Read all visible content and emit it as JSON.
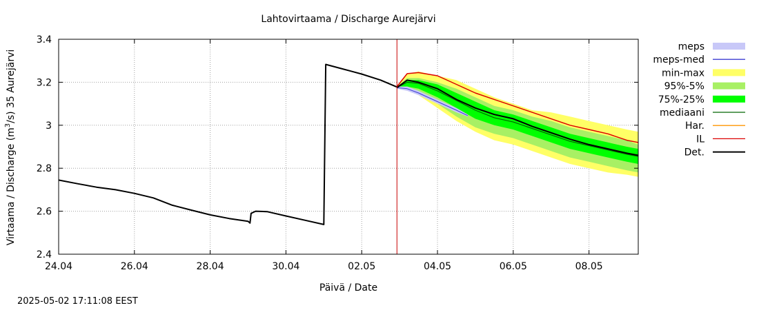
{
  "chart_data": {
    "type": "line",
    "title": "Lahtovirtaama / Discharge  Aurejärvi",
    "xlabel": "Päivä / Date",
    "ylabel_main": "Virtaama / Discharge (m",
    "ylabel_sup": "3",
    "ylabel_tail": "/s)  35 Aurejärvi",
    "ylim": [
      2.4,
      3.4
    ],
    "xlim_days": [
      0,
      15.3
    ],
    "x_ticks": [
      {
        "day": 0,
        "label": "24.04"
      },
      {
        "day": 2,
        "label": "26.04"
      },
      {
        "day": 4,
        "label": "28.04"
      },
      {
        "day": 6,
        "label": "30.04"
      },
      {
        "day": 8,
        "label": "02.05"
      },
      {
        "day": 10,
        "label": "04.05"
      },
      {
        "day": 12,
        "label": "06.05"
      },
      {
        "day": 14,
        "label": "08.05"
      }
    ],
    "y_ticks": [
      {
        "value": 2.4,
        "label": "2.4"
      },
      {
        "value": 2.6,
        "label": "2.6"
      },
      {
        "value": 2.8,
        "label": "2.8"
      },
      {
        "value": 3.0,
        "label": "3"
      },
      {
        "value": 3.2,
        "label": "3.2"
      },
      {
        "value": 3.4,
        "label": "3.4"
      }
    ],
    "grid": true,
    "forecast_start_day": 8.93,
    "colors": {
      "meps": "#c8c8f8",
      "meps_med": "#3c3cd2",
      "minmax": "#ffff66",
      "p95_5": "#a8f064",
      "p75_25": "#00ff00",
      "mediaani": "#006400",
      "har": "#ff9600",
      "il": "#dc0000",
      "det": "#000000",
      "vline": "#c80000",
      "grid": "#a0a0a0"
    },
    "legend": {
      "placement": "right",
      "items": [
        {
          "key": "meps",
          "label": "meps",
          "kind": "band"
        },
        {
          "key": "meps_med",
          "label": "meps-med",
          "kind": "line"
        },
        {
          "key": "minmax",
          "label": "min-max",
          "kind": "band"
        },
        {
          "key": "p95_5",
          "label": "95%-5%",
          "kind": "band"
        },
        {
          "key": "p75_25",
          "label": "75%-25%",
          "kind": "band"
        },
        {
          "key": "mediaani",
          "label": "mediaani",
          "kind": "line"
        },
        {
          "key": "har",
          "label": "Har.",
          "kind": "line"
        },
        {
          "key": "il",
          "label": "IL",
          "kind": "line"
        },
        {
          "key": "det",
          "label": "Det.",
          "kind": "thickline"
        }
      ]
    },
    "observed": {
      "name": "Det.",
      "points": [
        [
          0,
          2.745
        ],
        [
          0.5,
          2.728
        ],
        [
          1.0,
          2.712
        ],
        [
          1.5,
          2.7
        ],
        [
          2.0,
          2.683
        ],
        [
          2.5,
          2.662
        ],
        [
          3.0,
          2.628
        ],
        [
          3.5,
          2.605
        ],
        [
          4.0,
          2.583
        ],
        [
          4.5,
          2.566
        ],
        [
          5.0,
          2.553
        ],
        [
          5.05,
          2.545
        ],
        [
          5.08,
          2.59
        ],
        [
          5.2,
          2.6
        ],
        [
          5.5,
          2.598
        ],
        [
          6.0,
          2.578
        ],
        [
          6.5,
          2.558
        ],
        [
          7.0,
          2.538
        ],
        [
          7.05,
          3.283
        ],
        [
          7.5,
          3.262
        ],
        [
          8.0,
          3.238
        ],
        [
          8.5,
          3.21
        ],
        [
          8.93,
          3.178
        ]
      ]
    },
    "forecast_days": [
      8.93,
      9.2,
      9.5,
      10.0,
      10.5,
      11.0,
      11.5,
      12.0,
      12.5,
      13.0,
      13.5,
      14.0,
      14.5,
      15.0,
      15.3
    ],
    "minmax_upper": [
      3.18,
      3.24,
      3.25,
      3.23,
      3.21,
      3.17,
      3.13,
      3.1,
      3.07,
      3.06,
      3.04,
      3.02,
      3.0,
      2.98,
      2.97
    ],
    "minmax_lower": [
      3.17,
      3.17,
      3.14,
      3.08,
      3.02,
      2.97,
      2.93,
      2.91,
      2.88,
      2.85,
      2.82,
      2.8,
      2.78,
      2.77,
      2.76
    ],
    "p95_upper": [
      3.18,
      3.22,
      3.22,
      3.2,
      3.17,
      3.13,
      3.09,
      3.07,
      3.04,
      3.02,
      2.99,
      2.97,
      2.95,
      2.93,
      2.91
    ],
    "p95_lower": [
      3.17,
      3.17,
      3.15,
      3.1,
      3.04,
      2.99,
      2.96,
      2.94,
      2.91,
      2.88,
      2.85,
      2.83,
      2.81,
      2.79,
      2.78
    ],
    "p75_upper": [
      3.18,
      3.21,
      3.21,
      3.19,
      3.15,
      3.11,
      3.07,
      3.05,
      3.02,
      2.99,
      2.96,
      2.94,
      2.92,
      2.9,
      2.89
    ],
    "p75_lower": [
      3.17,
      3.18,
      3.17,
      3.13,
      3.08,
      3.03,
      3.0,
      2.98,
      2.95,
      2.92,
      2.89,
      2.87,
      2.85,
      2.83,
      2.82
    ],
    "mediaani": [
      3.175,
      3.2,
      3.195,
      3.16,
      3.115,
      3.07,
      3.035,
      3.015,
      2.985,
      2.955,
      2.925,
      2.905,
      2.885,
      2.865,
      2.855
    ],
    "det_forecast": [
      3.175,
      3.21,
      3.2,
      3.17,
      3.12,
      3.08,
      3.05,
      3.03,
      2.995,
      2.965,
      2.935,
      2.91,
      2.89,
      2.87,
      2.86
    ],
    "il": [
      3.18,
      3.24,
      3.245,
      3.23,
      3.19,
      3.15,
      3.12,
      3.09,
      3.06,
      3.03,
      3.0,
      2.98,
      2.96,
      2.93,
      2.92
    ],
    "meps_upper": [
      3.18,
      3.18,
      3.16,
      3.12,
      3.08,
      3.05
    ],
    "meps_lower": [
      3.17,
      3.16,
      3.14,
      3.1,
      3.06,
      3.04
    ],
    "meps_days": [
      8.93,
      9.2,
      9.5,
      10.0,
      10.5,
      10.8
    ],
    "meps_med": [
      3.175,
      3.17,
      3.15,
      3.11,
      3.07,
      3.045
    ]
  },
  "footer": {
    "timestamp": "2025-05-02 17:11:08 EEST"
  }
}
